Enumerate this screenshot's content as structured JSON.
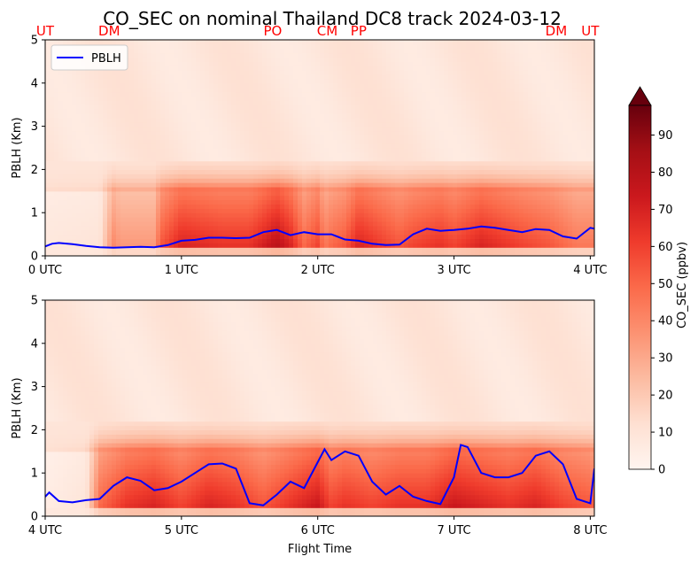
{
  "title": "CO_SEC on nominal Thailand DC8 track 2024-03-12",
  "xlabel": "Flight Time",
  "colorbar": {
    "label": "CO_SEC (ppbv)",
    "ticks": [
      "0",
      "10",
      "20",
      "30",
      "40",
      "50",
      "60",
      "70",
      "80",
      "90"
    ],
    "colormap": "Reds",
    "vmin": 0,
    "vmax": 98,
    "extend": "max"
  },
  "colors": {
    "pblh_line": "#0000ff",
    "site_labels": "#ff0000"
  },
  "chart_data": [
    {
      "type": "heatmap",
      "panel": "top",
      "ylabel": "PBLH (Km)",
      "ylim": [
        0,
        5
      ],
      "yticks": [
        "0",
        "1",
        "2",
        "3",
        "4",
        "5"
      ],
      "xlim": [
        0,
        4.03
      ],
      "xticks": [
        {
          "v": 0,
          "label": "0 UTC"
        },
        {
          "v": 1,
          "label": "1 UTC"
        },
        {
          "v": 2,
          "label": "2 UTC"
        },
        {
          "v": 3,
          "label": "3 UTC"
        },
        {
          "v": 4,
          "label": "4 UTC"
        }
      ],
      "site_labels": [
        {
          "v": 0.0,
          "label": "UT"
        },
        {
          "v": 0.47,
          "label": "DM"
        },
        {
          "v": 1.67,
          "label": "PO"
        },
        {
          "v": 2.07,
          "label": "CM"
        },
        {
          "v": 2.3,
          "label": "PP"
        },
        {
          "v": 3.75,
          "label": "DM"
        },
        {
          "v": 4.0,
          "label": "UT"
        }
      ],
      "legend": {
        "label": "PBLH",
        "position": "upper-left"
      },
      "series": [
        {
          "name": "PBLH",
          "type": "line",
          "x": [
            0,
            0.05,
            0.1,
            0.2,
            0.3,
            0.4,
            0.5,
            0.6,
            0.7,
            0.8,
            0.9,
            1.0,
            1.1,
            1.2,
            1.3,
            1.4,
            1.5,
            1.6,
            1.7,
            1.8,
            1.9,
            2.0,
            2.1,
            2.2,
            2.3,
            2.4,
            2.5,
            2.6,
            2.7,
            2.8,
            2.9,
            3.0,
            3.1,
            3.2,
            3.3,
            3.4,
            3.5,
            3.6,
            3.7,
            3.8,
            3.9,
            4.0,
            4.03
          ],
          "y": [
            0.22,
            0.28,
            0.3,
            0.27,
            0.23,
            0.2,
            0.19,
            0.2,
            0.21,
            0.2,
            0.25,
            0.35,
            0.37,
            0.42,
            0.42,
            0.41,
            0.42,
            0.55,
            0.6,
            0.48,
            0.55,
            0.5,
            0.5,
            0.38,
            0.35,
            0.28,
            0.25,
            0.26,
            0.5,
            0.63,
            0.58,
            0.6,
            0.63,
            0.68,
            0.65,
            0.6,
            0.55,
            0.62,
            0.6,
            0.45,
            0.4,
            0.65,
            0.63
          ]
        }
      ],
      "heat_profile": {
        "x": [
          0,
          0.4,
          0.5,
          0.55,
          0.8,
          0.85,
          1.0,
          1.3,
          1.5,
          1.6,
          1.7,
          1.8,
          1.9,
          2.0,
          2.05,
          2.1,
          2.2,
          2.3,
          2.5,
          2.6,
          2.7,
          2.9,
          3.0,
          3.2,
          3.5,
          3.7,
          3.8,
          3.9,
          4.0
        ],
        "intensity": [
          8,
          10,
          40,
          35,
          35,
          55,
          70,
          65,
          65,
          72,
          80,
          70,
          50,
          60,
          45,
          50,
          55,
          70,
          60,
          55,
          60,
          65,
          60,
          70,
          60,
          55,
          50,
          45,
          45
        ]
      }
    },
    {
      "type": "heatmap",
      "panel": "bottom",
      "ylabel": "PBLH (Km)",
      "ylim": [
        0,
        5
      ],
      "yticks": [
        "0",
        "1",
        "2",
        "3",
        "4",
        "5"
      ],
      "xlim": [
        4,
        8.03
      ],
      "xticks": [
        {
          "v": 4,
          "label": "4 UTC"
        },
        {
          "v": 5,
          "label": "5 UTC"
        },
        {
          "v": 6,
          "label": "6 UTC"
        },
        {
          "v": 7,
          "label": "7 UTC"
        },
        {
          "v": 8,
          "label": "8 UTC"
        }
      ],
      "series": [
        {
          "name": "PBLH",
          "type": "line",
          "x": [
            4,
            4.03,
            4.1,
            4.2,
            4.3,
            4.4,
            4.5,
            4.6,
            4.7,
            4.8,
            4.9,
            5.0,
            5.1,
            5.2,
            5.3,
            5.4,
            5.5,
            5.6,
            5.7,
            5.8,
            5.9,
            6.0,
            6.05,
            6.1,
            6.2,
            6.3,
            6.4,
            6.5,
            6.6,
            6.7,
            6.8,
            6.9,
            7.0,
            7.05,
            7.1,
            7.2,
            7.3,
            7.4,
            7.5,
            7.6,
            7.7,
            7.8,
            7.9,
            8.0,
            8.03
          ],
          "y": [
            0.45,
            0.55,
            0.35,
            0.32,
            0.37,
            0.4,
            0.7,
            0.9,
            0.82,
            0.6,
            0.65,
            0.8,
            1.0,
            1.2,
            1.22,
            1.1,
            0.3,
            0.25,
            0.5,
            0.8,
            0.65,
            1.25,
            1.55,
            1.3,
            1.5,
            1.4,
            0.8,
            0.5,
            0.7,
            0.45,
            0.35,
            0.28,
            0.9,
            1.65,
            1.6,
            1.0,
            0.9,
            0.9,
            1.0,
            1.4,
            1.5,
            1.2,
            0.4,
            0.3,
            1.1
          ]
        }
      ],
      "heat_profile": {
        "x": [
          4,
          4.3,
          4.4,
          4.6,
          4.8,
          5.0,
          5.2,
          5.4,
          5.5,
          5.6,
          5.8,
          6.0,
          6.1,
          6.2,
          6.4,
          6.6,
          6.8,
          7.0,
          7.2,
          7.4,
          7.6,
          7.8,
          8.0,
          8.03
        ],
        "intensity": [
          5,
          10,
          50,
          65,
          70,
          60,
          70,
          65,
          60,
          55,
          65,
          75,
          60,
          65,
          60,
          65,
          65,
          75,
          70,
          65,
          70,
          60,
          55,
          50
        ]
      }
    }
  ]
}
